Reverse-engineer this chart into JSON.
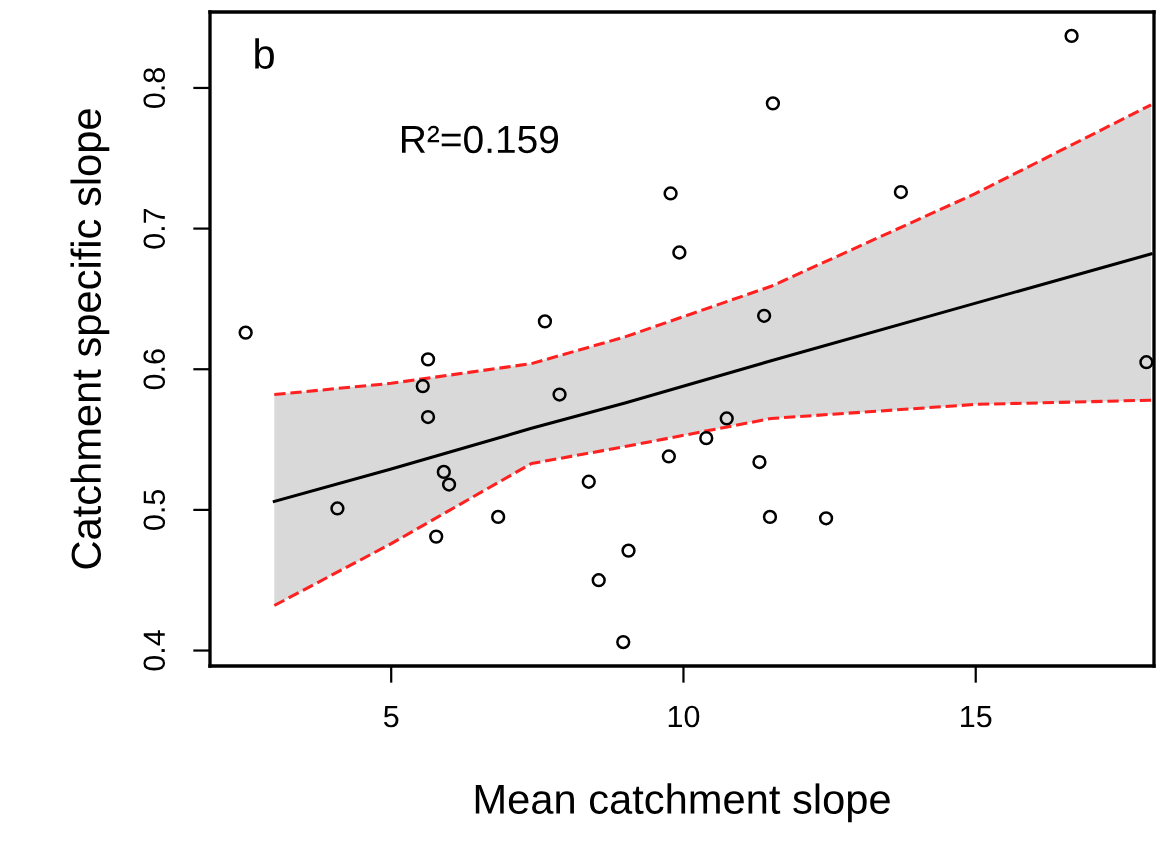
{
  "chart_data": {
    "type": "scatter",
    "xlabel": "Mean catchment slope",
    "ylabel": "Catchment specific slope",
    "annotations": [
      "b",
      "R²=0.159"
    ],
    "xlim": [
      1.9,
      18.05
    ],
    "ylim": [
      0.389,
      0.854
    ],
    "xticks": [
      5,
      10,
      15
    ],
    "yticks": [
      0.4,
      0.5,
      0.6,
      0.7,
      0.8
    ],
    "grid": false,
    "legend": false,
    "series": [
      {
        "color": "#000000",
        "marker": "circle",
        "x": [
          2.51,
          4.08,
          5.63,
          5.54,
          5.63,
          5.9,
          5.99,
          5.77,
          6.83,
          7.63,
          7.88,
          8.38,
          9.06,
          8.55,
          8.97,
          16.64,
          11.53,
          9.78,
          13.72,
          9.93,
          11.38,
          17.92,
          10.74,
          10.39,
          9.75,
          11.3,
          11.48,
          12.44
        ],
        "values": [
          0.626,
          0.501,
          0.607,
          0.588,
          0.566,
          0.527,
          0.518,
          0.481,
          0.495,
          0.634,
          0.582,
          0.52,
          0.471,
          0.45,
          0.406,
          0.837,
          0.789,
          0.725,
          0.726,
          0.683,
          0.638,
          0.605,
          0.565,
          0.551,
          0.538,
          0.534,
          0.495,
          0.494
        ]
      },
      {
        "type": "line",
        "color": "#000000",
        "line_style": "solid",
        "x": [
          3,
          5,
          7.4,
          9,
          11.5,
          15,
          18
        ],
        "values": [
          0.506,
          0.529,
          0.558,
          0.576,
          0.606,
          0.647,
          0.682
        ],
        "lower": [
          0.432,
          0.476,
          0.533,
          0.545,
          0.565,
          0.575,
          0.578
        ],
        "upper": [
          0.582,
          0.59,
          0.604,
          0.623,
          0.659,
          0.725,
          0.788
        ]
      },
      {
        "type": "line",
        "color": "#ff2020",
        "line_style": "dashed",
        "x": [
          3,
          5,
          7.4,
          9,
          11.5,
          15,
          18
        ],
        "values": [
          0.432,
          0.476,
          0.533,
          0.545,
          0.565,
          0.575,
          0.578
        ]
      },
      {
        "type": "line",
        "color": "#ff2020",
        "line_style": "dashed",
        "x": [
          3,
          5,
          7.4,
          9,
          11.5,
          15,
          18
        ],
        "values": [
          0.582,
          0.59,
          0.604,
          0.623,
          0.659,
          0.725,
          0.788
        ]
      }
    ]
  }
}
